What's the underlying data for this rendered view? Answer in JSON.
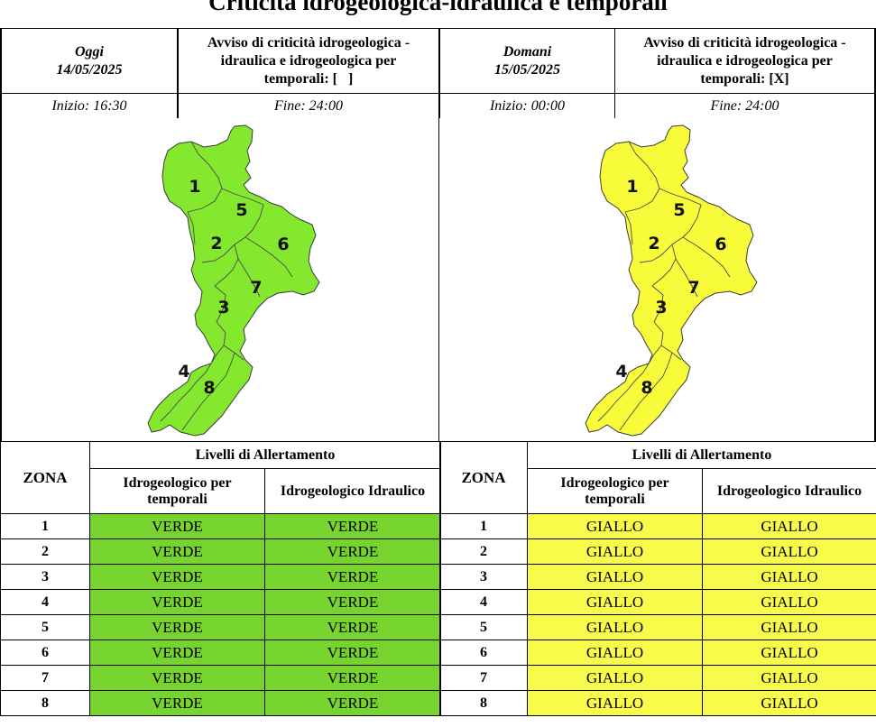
{
  "title": "Criticità idrogeologica-idraulica e temporali",
  "today": {
    "day_label": "Oggi",
    "date": "14/05/2025",
    "avviso_line1": "Avviso di criticità idrogeologica -",
    "avviso_line2": "idraulica e idrogeologica per",
    "avviso_line3": "temporali: [   ]",
    "inizio": "Inizio: 16:30",
    "fine": "Fine: 24:00",
    "map_color": "#84e82f",
    "row_color": "#77d42f",
    "level": "VERDE"
  },
  "tomorrow": {
    "day_label": "Domani",
    "date": "15/05/2025",
    "avviso_line1": "Avviso di criticità idrogeologica -",
    "avviso_line2": "idraulica e idrogeologica per",
    "avviso_line3": "temporali: [X]",
    "inizio": "Inizio: 00:00",
    "fine": "Fine: 24:00",
    "map_color": "#f8fb3a",
    "row_color": "#f8fb4a",
    "level": "GIALLO"
  },
  "map_zone_labels": [
    "1",
    "5",
    "2",
    "6",
    "7",
    "3",
    "4",
    "8"
  ],
  "table": {
    "zona_header": "ZONA",
    "livelli_header": "Livelli di Allertamento",
    "col1_line1": "Idrogeologico per",
    "col1_line2": "temporali",
    "col2": "Idrogeologico Idraulico"
  },
  "zones": [
    "1",
    "2",
    "3",
    "4",
    "5",
    "6",
    "7",
    "8"
  ],
  "today_rows": [
    {
      "zona": "1",
      "temporali": "VERDE",
      "idraulico": "VERDE"
    },
    {
      "zona": "2",
      "temporali": "VERDE",
      "idraulico": "VERDE"
    },
    {
      "zona": "3",
      "temporali": "VERDE",
      "idraulico": "VERDE"
    },
    {
      "zona": "4",
      "temporali": "VERDE",
      "idraulico": "VERDE"
    },
    {
      "zona": "5",
      "temporali": "VERDE",
      "idraulico": "VERDE"
    },
    {
      "zona": "6",
      "temporali": "VERDE",
      "idraulico": "VERDE"
    },
    {
      "zona": "7",
      "temporali": "VERDE",
      "idraulico": "VERDE"
    },
    {
      "zona": "8",
      "temporali": "VERDE",
      "idraulico": "VERDE"
    }
  ],
  "tomorrow_rows": [
    {
      "zona": "1",
      "temporali": "GIALLO",
      "idraulico": "GIALLO"
    },
    {
      "zona": "2",
      "temporali": "GIALLO",
      "idraulico": "GIALLO"
    },
    {
      "zona": "3",
      "temporali": "GIALLO",
      "idraulico": "GIALLO"
    },
    {
      "zona": "4",
      "temporali": "GIALLO",
      "idraulico": "GIALLO"
    },
    {
      "zona": "5",
      "temporali": "GIALLO",
      "idraulico": "GIALLO"
    },
    {
      "zona": "6",
      "temporali": "GIALLO",
      "idraulico": "GIALLO"
    },
    {
      "zona": "7",
      "temporali": "GIALLO",
      "idraulico": "GIALLO"
    },
    {
      "zona": "8",
      "temporali": "GIALLO",
      "idraulico": "GIALLO"
    }
  ]
}
